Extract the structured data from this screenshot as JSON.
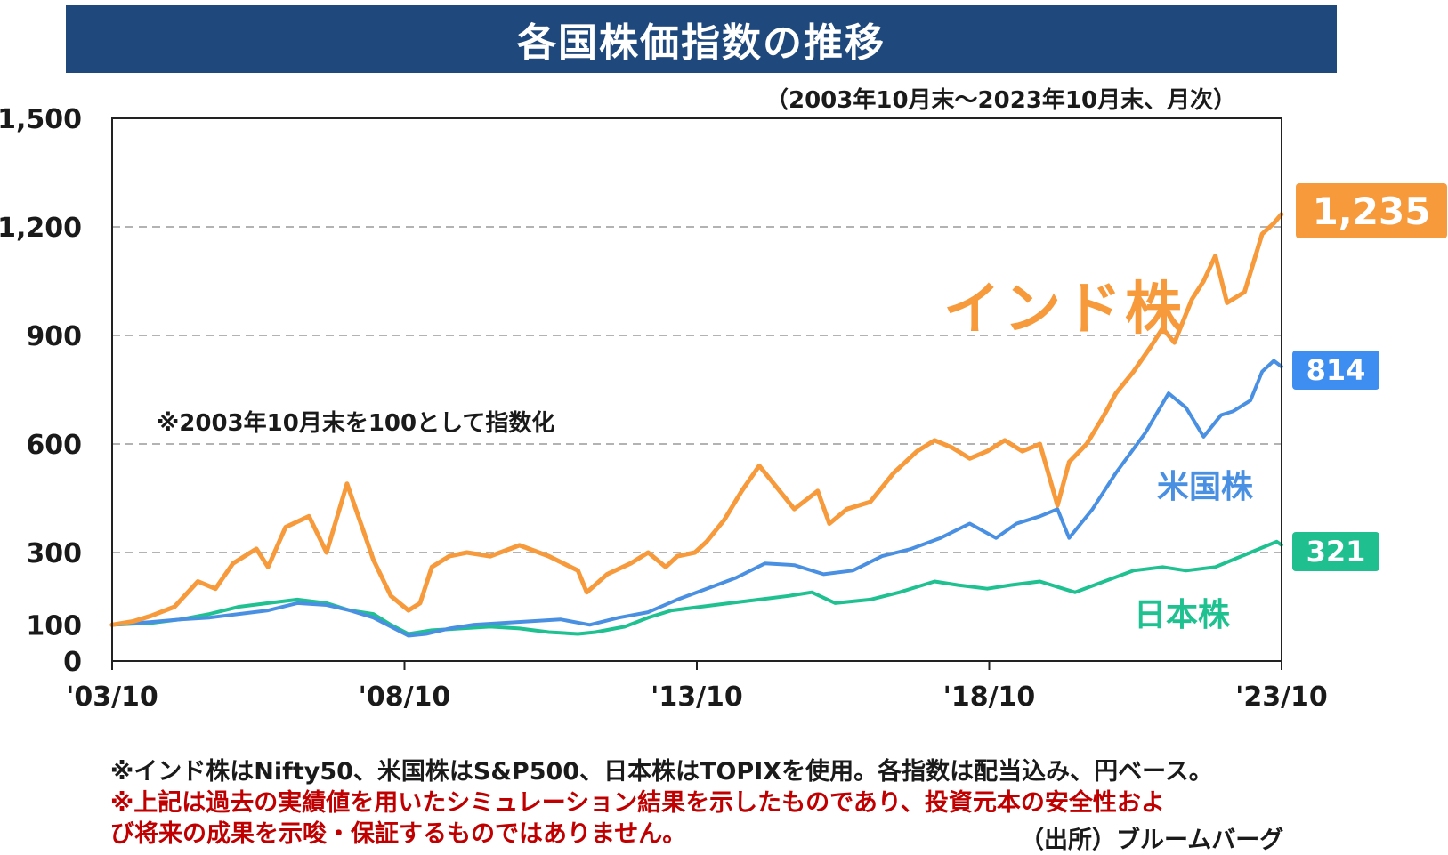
{
  "header": {
    "title": "各国株価指数の推移",
    "subtitle": "（2003年10月末～2023年10月末、月次）",
    "index_note": "※2003年10月末を100として指数化"
  },
  "series_labels": {
    "india": "インド株",
    "us": "米国株",
    "japan": "日本株"
  },
  "end_badges": {
    "india": "1,235",
    "us": "814",
    "japan": "321"
  },
  "footer": {
    "line1": "※インド株はNifty50、米国株はS&P500、日本株はTOPIXを使用。各指数は配当込み、円ベース。",
    "line2": "※上記は過去の実績値を用いたシミュレーション結果を示したものであり、投資元本の安全性およ",
    "line3": "び将来の成果を示唆・保証するものではありません。",
    "source": "（出所）ブルームバーグ"
  },
  "chart_data": {
    "type": "line",
    "title": "各国株価指数の推移",
    "subtitle": "（2003年10月末～2023年10月末、月次）",
    "xlabel": "",
    "ylabel": "",
    "x_range": [
      2003.833,
      2023.833
    ],
    "ylim": [
      0,
      1500
    ],
    "yticks": [
      {
        "value": 0,
        "label": "0"
      },
      {
        "value": 100,
        "label": "100"
      },
      {
        "value": 300,
        "label": "300"
      },
      {
        "value": 600,
        "label": "600"
      },
      {
        "value": 900,
        "label": "900"
      },
      {
        "value": 1200,
        "label": "1,200"
      },
      {
        "value": 1500,
        "label": "1,500"
      }
    ],
    "gridlines_at": [
      300,
      600,
      900,
      1200
    ],
    "xticks": [
      {
        "value": 2003.833,
        "label": "'03/10"
      },
      {
        "value": 2008.833,
        "label": "'08/10"
      },
      {
        "value": 2013.833,
        "label": "'13/10"
      },
      {
        "value": 2018.833,
        "label": "'18/10"
      },
      {
        "value": 2023.833,
        "label": "'23/10"
      }
    ],
    "series": [
      {
        "name": "インド株",
        "color": "#f79a3c",
        "x": [
          2003.83,
          2004.2,
          2004.5,
          2004.9,
          2005.3,
          2005.6,
          2005.9,
          2006.3,
          2006.5,
          2006.8,
          2007.2,
          2007.5,
          2007.85,
          2008.0,
          2008.3,
          2008.6,
          2008.9,
          2009.1,
          2009.3,
          2009.6,
          2009.9,
          2010.3,
          2010.8,
          2011.3,
          2011.8,
          2011.95,
          2012.3,
          2012.7,
          2013.0,
          2013.3,
          2013.5,
          2013.8,
          2014.0,
          2014.3,
          2014.6,
          2014.9,
          2015.2,
          2015.5,
          2015.9,
          2016.1,
          2016.4,
          2016.8,
          2017.2,
          2017.6,
          2017.9,
          2018.2,
          2018.5,
          2018.8,
          2019.1,
          2019.4,
          2019.7,
          2020.0,
          2020.2,
          2020.5,
          2020.8,
          2021.0,
          2021.3,
          2021.6,
          2021.8,
          2022.0,
          2022.3,
          2022.5,
          2022.7,
          2022.9,
          2023.2,
          2023.5,
          2023.7,
          2023.83
        ],
        "values": [
          100,
          110,
          125,
          150,
          220,
          200,
          270,
          310,
          260,
          370,
          400,
          300,
          490,
          420,
          280,
          180,
          140,
          160,
          260,
          290,
          300,
          290,
          320,
          290,
          250,
          190,
          240,
          270,
          300,
          260,
          290,
          300,
          330,
          390,
          470,
          540,
          480,
          420,
          470,
          380,
          420,
          440,
          520,
          580,
          610,
          590,
          560,
          580,
          610,
          580,
          600,
          430,
          550,
          600,
          680,
          740,
          800,
          870,
          920,
          880,
          1000,
          1050,
          1120,
          990,
          1020,
          1180,
          1210,
          1235
        ]
      },
      {
        "name": "米国株",
        "color": "#4a90e2",
        "x": [
          2003.83,
          2004.5,
          2005.0,
          2005.5,
          2006.0,
          2006.5,
          2007.0,
          2007.5,
          2007.9,
          2008.3,
          2008.6,
          2008.9,
          2009.2,
          2009.6,
          2010.0,
          2010.5,
          2011.0,
          2011.5,
          2012.0,
          2012.5,
          2013.0,
          2013.5,
          2014.0,
          2014.5,
          2015.0,
          2015.5,
          2016.0,
          2016.5,
          2017.0,
          2017.5,
          2018.0,
          2018.5,
          2018.95,
          2019.3,
          2019.7,
          2020.0,
          2020.2,
          2020.6,
          2021.0,
          2021.5,
          2021.9,
          2022.2,
          2022.5,
          2022.8,
          2023.0,
          2023.3,
          2023.5,
          2023.7,
          2023.83
        ],
        "values": [
          100,
          108,
          115,
          120,
          130,
          140,
          160,
          155,
          140,
          120,
          95,
          70,
          75,
          90,
          100,
          105,
          110,
          115,
          100,
          120,
          135,
          170,
          200,
          230,
          270,
          265,
          240,
          250,
          290,
          310,
          340,
          380,
          340,
          380,
          400,
          420,
          340,
          420,
          520,
          630,
          740,
          700,
          620,
          680,
          690,
          720,
          800,
          830,
          814
        ]
      },
      {
        "name": "日本株",
        "color": "#1fc191",
        "x": [
          2003.83,
          2004.5,
          2005.0,
          2005.5,
          2006.0,
          2006.5,
          2007.0,
          2007.5,
          2007.9,
          2008.3,
          2008.6,
          2008.9,
          2009.3,
          2009.8,
          2010.3,
          2010.8,
          2011.3,
          2011.8,
          2012.1,
          2012.6,
          2013.0,
          2013.4,
          2013.9,
          2014.4,
          2014.9,
          2015.4,
          2015.8,
          2016.2,
          2016.8,
          2017.3,
          2017.9,
          2018.3,
          2018.8,
          2019.2,
          2019.7,
          2020.1,
          2020.3,
          2020.8,
          2021.3,
          2021.8,
          2022.2,
          2022.7,
          2023.0,
          2023.3,
          2023.6,
          2023.75,
          2023.83
        ],
        "values": [
          100,
          105,
          115,
          130,
          150,
          160,
          170,
          160,
          140,
          130,
          100,
          75,
          85,
          90,
          95,
          90,
          80,
          75,
          80,
          95,
          120,
          140,
          150,
          160,
          170,
          180,
          190,
          160,
          170,
          190,
          220,
          210,
          200,
          210,
          220,
          200,
          190,
          220,
          250,
          260,
          250,
          260,
          280,
          300,
          320,
          330,
          321
        ]
      }
    ]
  }
}
